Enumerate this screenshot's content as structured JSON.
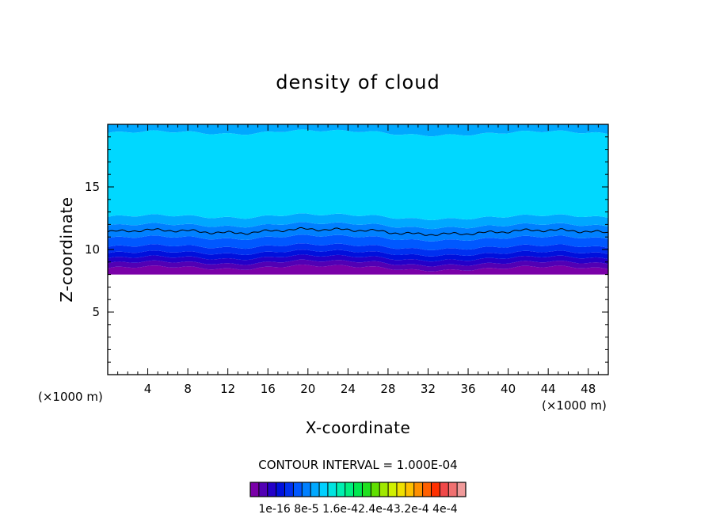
{
  "chart_data": {
    "type": "heatmap",
    "title": "density of cloud",
    "xlabel": "X-coordinate",
    "ylabel": "Z-coordinate",
    "x_unit": "(×1000 m)",
    "y_unit": "(×1000 m)",
    "xlim": [
      0,
      50
    ],
    "ylim": [
      0,
      20
    ],
    "x_ticks": [
      4,
      8,
      12,
      16,
      20,
      24,
      28,
      32,
      36,
      40,
      44,
      48
    ],
    "y_ticks": [
      5,
      10,
      15
    ],
    "grid": false,
    "contour_interval_label": "CONTOUR INTERVAL = 1.000E-04",
    "colorbar": {
      "colors": [
        "#7a00a8",
        "#5200b4",
        "#2400c8",
        "#0010dc",
        "#0030f0",
        "#0058ff",
        "#0080ff",
        "#00a8ff",
        "#00d0ff",
        "#00e4e0",
        "#00f0b0",
        "#00f080",
        "#00e850",
        "#20e020",
        "#60e000",
        "#a0e800",
        "#d0f000",
        "#f0e000",
        "#ffc000",
        "#ff9000",
        "#ff6000",
        "#ff3000",
        "#f04848",
        "#f07070",
        "#f09a9a"
      ],
      "labels": [
        "1e-16",
        "8e-5",
        "1.6e-4",
        "2.4e-4",
        "3.2e-4",
        "4e-4"
      ],
      "label_text": "1e-16 8e-5 1.6e-42.4e-43.2e-4 4e-4"
    },
    "layers": [
      {
        "z_bottom": 8.0,
        "z_top": 8.5,
        "color": "#7a00a8"
      },
      {
        "z_bottom": 8.5,
        "z_top": 8.9,
        "color": "#5200b4"
      },
      {
        "z_bottom": 8.9,
        "z_top": 9.3,
        "color": "#2400c8"
      },
      {
        "z_bottom": 9.3,
        "z_top": 9.7,
        "color": "#0010dc"
      },
      {
        "z_bottom": 9.7,
        "z_top": 10.2,
        "color": "#0030f0"
      },
      {
        "z_bottom": 10.2,
        "z_top": 10.9,
        "color": "#0058ff"
      },
      {
        "z_bottom": 10.9,
        "z_top": 11.9,
        "color": "#0080ff"
      },
      {
        "z_bottom": 11.9,
        "z_top": 12.6,
        "color": "#00a8ff"
      },
      {
        "z_bottom": 12.6,
        "z_top": 19.3,
        "color": "#00d8ff"
      },
      {
        "z_bottom": 19.3,
        "z_top": 20.0,
        "color": "#00a8ff"
      }
    ],
    "contour_line_z": 11.4
  }
}
